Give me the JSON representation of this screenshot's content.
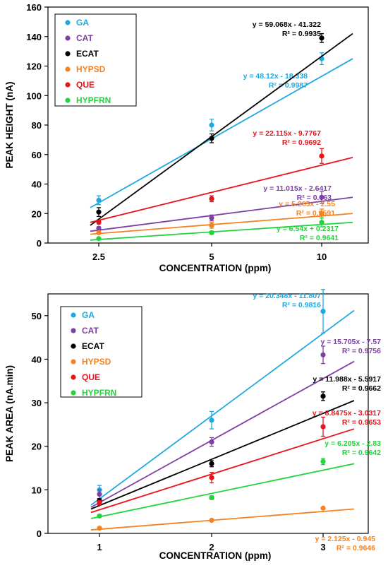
{
  "chart_data": [
    {
      "type": "scatter",
      "xlabel": "CONCENTRATION (ppm)",
      "ylabel": "PEAK HEIGHT (nA)",
      "x_scale": "log",
      "categories": [
        "2.5",
        "5",
        "10"
      ],
      "x": [
        2.5,
        5,
        10
      ],
      "ylim": [
        0,
        160
      ],
      "yticks": [
        "0",
        "20",
        "40",
        "60",
        "80",
        "100",
        "120",
        "140",
        "160"
      ],
      "grid": false,
      "legend_position": "top-left",
      "series": [
        {
          "name": "GA",
          "color": "#1FA9E1",
          "values": [
            29,
            80,
            125
          ],
          "errors": [
            3,
            4,
            4
          ],
          "equation": "y = 48.12x - 18.338",
          "r2": "R² = 0.9987",
          "fit": [
            24,
            125
          ]
        },
        {
          "name": "CAT",
          "color": "#7E3FA6",
          "values": [
            10,
            17,
            31
          ],
          "errors": [
            1,
            2,
            4
          ],
          "equation": "y = 11.015x - 2.6417",
          "r2": "R² = 0.963",
          "fit": [
            8,
            31
          ]
        },
        {
          "name": "ECAT",
          "color": "#000000",
          "values": [
            21,
            71,
            139
          ],
          "errors": [
            3,
            3,
            3
          ],
          "equation": "y = 59.068x - 41.322",
          "r2": "R² = 0.9935",
          "fit": [
            12,
            142
          ]
        },
        {
          "name": "HYPSD",
          "color": "#F58220",
          "values": [
            7,
            12,
            20
          ],
          "errors": [
            1,
            2,
            3
          ],
          "equation": "y = 5.285x - 2.55",
          "r2": "R² = 0.9591",
          "fit": [
            6,
            20
          ]
        },
        {
          "name": "QUE",
          "color": "#E8141C",
          "values": [
            14,
            30,
            59
          ],
          "errors": [
            1,
            2,
            5
          ],
          "equation": "y = 22.115x - 9.7767",
          "r2": "R² = 0.9692",
          "fit": [
            14,
            58
          ]
        },
        {
          "name": "HYPFRN",
          "color": "#22D33C",
          "values": [
            3,
            7,
            14
          ],
          "errors": [
            0.5,
            1,
            3
          ],
          "equation": "y = 6.54x + 0.2317",
          "r2": "R² = 0.9641",
          "fit": [
            2,
            14
          ]
        }
      ]
    },
    {
      "type": "scatter",
      "xlabel": "CONCENTRATION (ppm)",
      "ylabel": "PEAK AREA (nA.min)",
      "categories": [
        "1",
        "2",
        "3"
      ],
      "x": [
        1,
        2,
        3
      ],
      "ylim": [
        0,
        55
      ],
      "yticks": [
        "0",
        "10",
        "20",
        "30",
        "40",
        "50"
      ],
      "grid": false,
      "legend_position": "top-left",
      "series": [
        {
          "name": "GA",
          "color": "#1FA9E1",
          "values": [
            10,
            26,
            51
          ],
          "errors": [
            1,
            2,
            5
          ],
          "equation": "y = 20.348x - 11.807",
          "r2": "R² = 0.9816",
          "fit": [
            6.5,
            51.2
          ]
        },
        {
          "name": "CAT",
          "color": "#7E3FA6",
          "values": [
            9,
            21,
            41
          ],
          "errors": [
            1,
            1,
            2
          ],
          "equation": "y = 15.705x - 7.57",
          "r2": "R² = 0.9756",
          "fit": [
            6.0,
            39.5
          ]
        },
        {
          "name": "ECAT",
          "color": "#000000",
          "values": [
            7.5,
            16,
            31.5
          ],
          "errors": [
            0.5,
            0.7,
            1
          ],
          "equation": "y = 11.988x - 5.5917",
          "r2": "R² = 0.9662",
          "fit": [
            5.6,
            30.5
          ]
        },
        {
          "name": "HYPSD",
          "color": "#F58220",
          "values": [
            1.2,
            3,
            5.8
          ],
          "errors": [
            0.1,
            0.1,
            0.2
          ],
          "equation": "y = 2.125x - 0.945",
          "r2": "R² = 0.9646",
          "fit": [
            0.8,
            5.6
          ]
        },
        {
          "name": "QUE",
          "color": "#E8141C",
          "values": [
            7,
            12.8,
            24.5
          ],
          "errors": [
            0.5,
            1.2,
            2.2
          ],
          "equation": "y = 8.8475x - 3.0317",
          "r2": "R² = 0.9653",
          "fit": [
            4.8,
            24
          ]
        },
        {
          "name": "HYPFRN",
          "color": "#22D33C",
          "values": [
            4,
            8.2,
            16.5
          ],
          "errors": [
            0.3,
            0.4,
            0.7
          ],
          "equation": "y = 6.205x - 2.83",
          "r2": "R² = 0.9642",
          "fit": [
            3.4,
            16
          ]
        }
      ]
    }
  ]
}
